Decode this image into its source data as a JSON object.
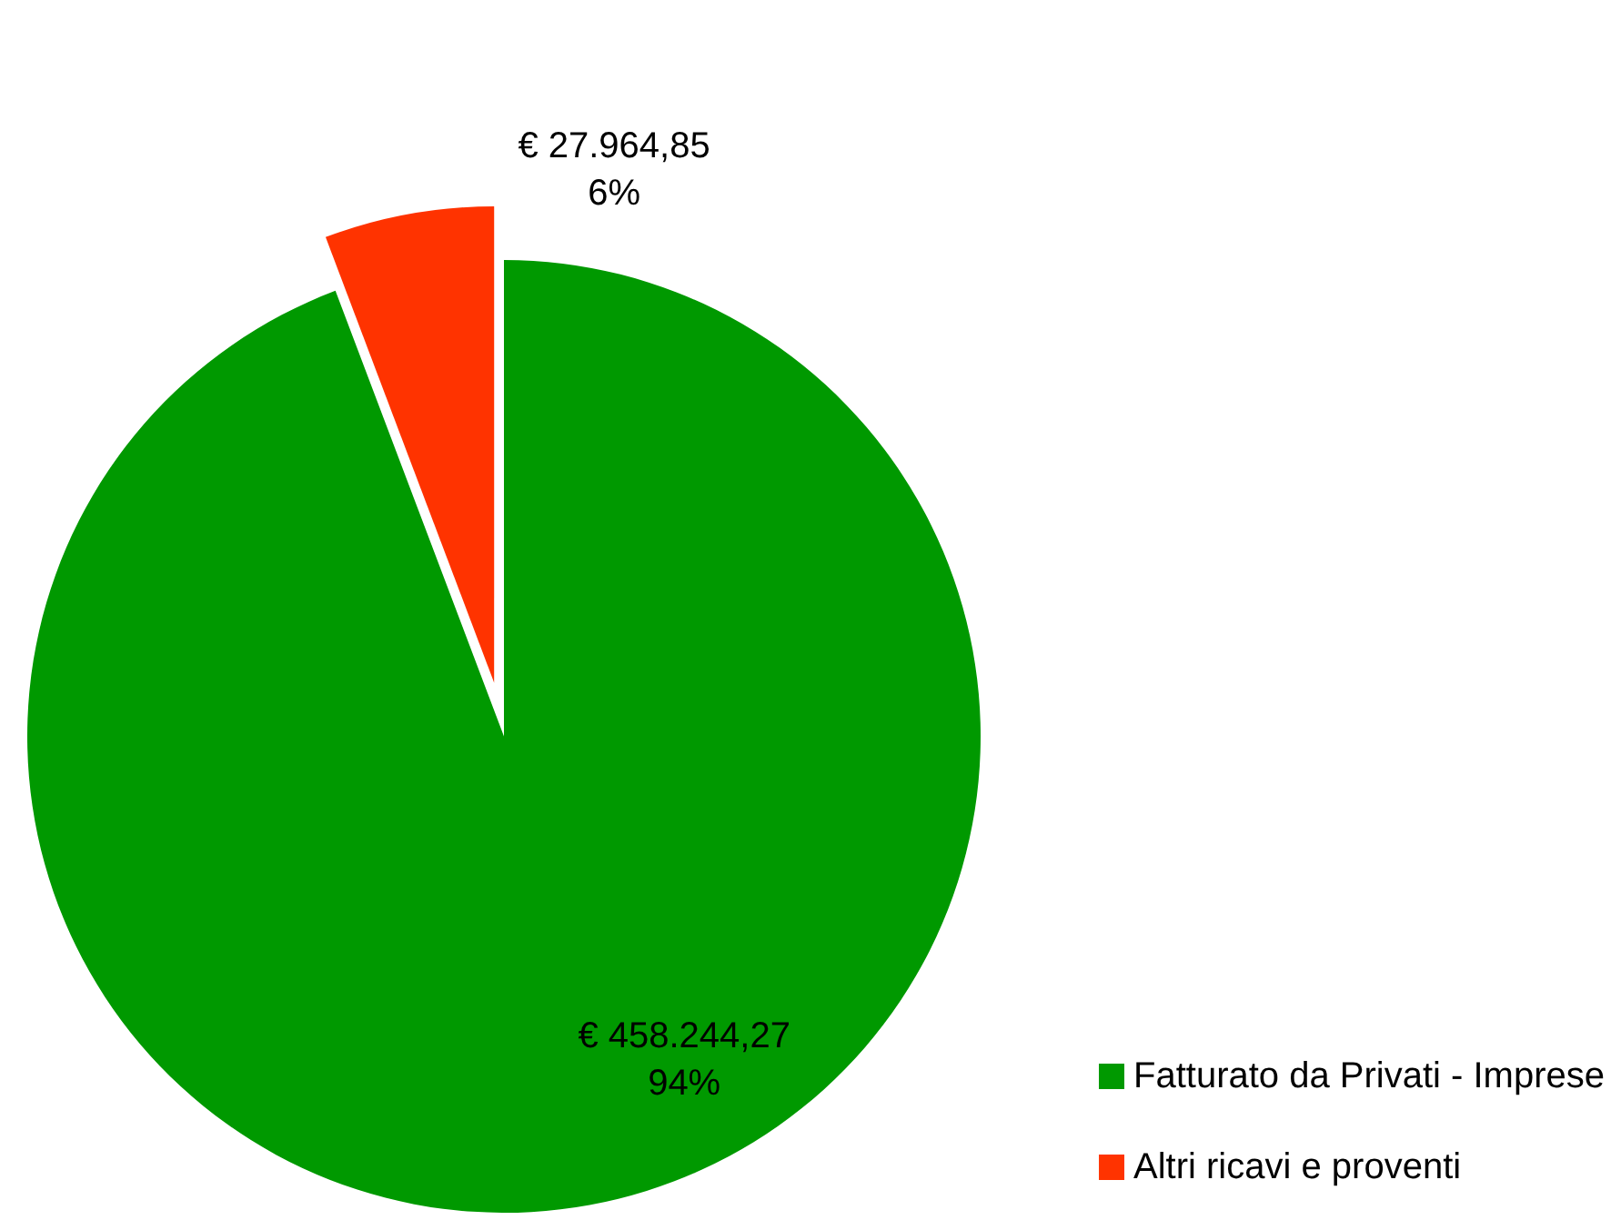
{
  "chart_data": {
    "type": "pie",
    "categories": [
      "Fatturato da Privati - Imprese",
      "Altri ricavi e proventi"
    ],
    "values": [
      458244.27,
      27964.85
    ],
    "colors": [
      "#009900",
      "#ff3300"
    ],
    "value_labels": [
      "€ 458.244,27\n94%",
      "€ 27.964,85\n6%"
    ],
    "legend": "bottom right"
  }
}
